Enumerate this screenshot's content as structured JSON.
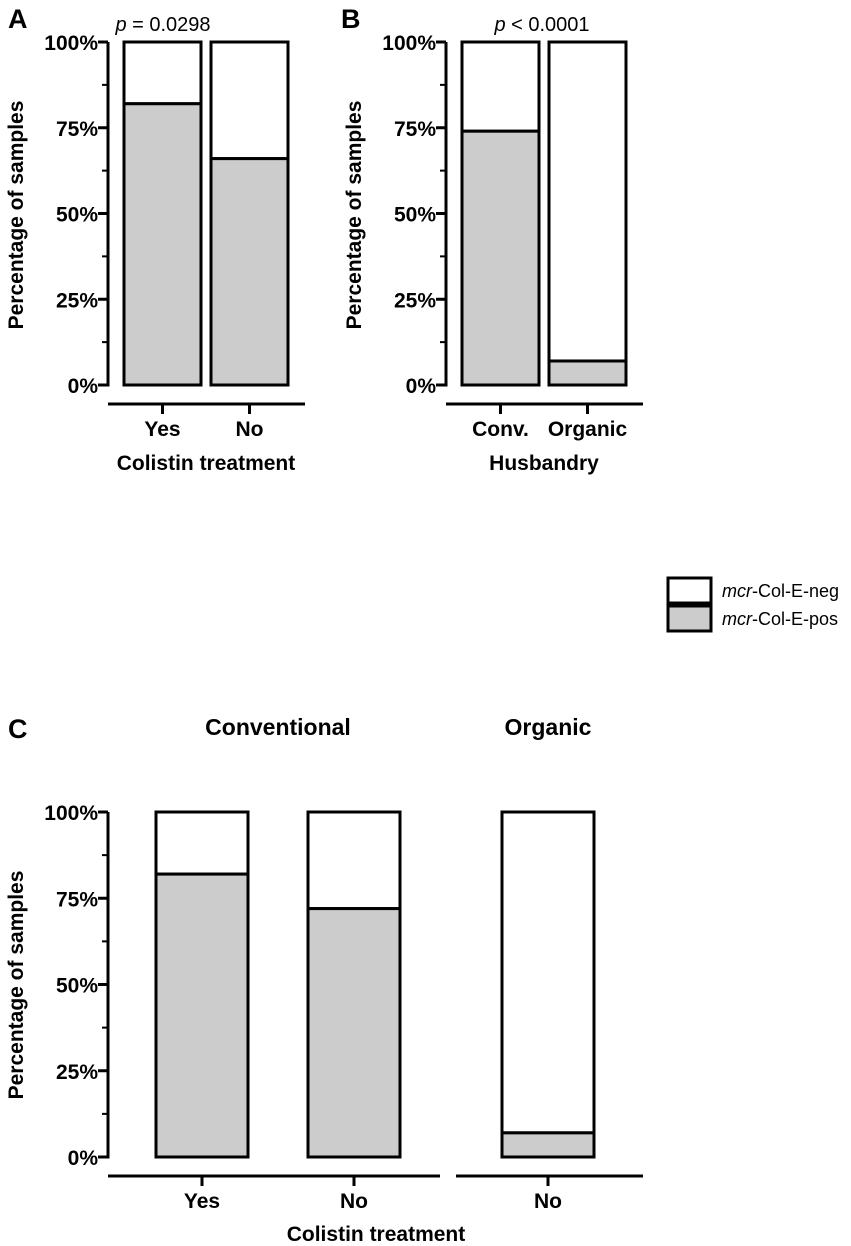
{
  "chart_data": [
    {
      "type": "bar",
      "stacked": true,
      "panel": "A",
      "annotation_p": "p",
      "annotation_rest": " = 0.0298",
      "ylabel": "Percentage of samples",
      "xlabel": "Colistin treatment",
      "ylim": [
        0,
        100
      ],
      "yticks": [
        "0%",
        "25%",
        "50%",
        "75%",
        "100%"
      ],
      "categories": [
        "Yes",
        "No"
      ],
      "series": [
        {
          "name": "mcr-Col-E-pos",
          "values": [
            82,
            66
          ]
        },
        {
          "name": "mcr-Col-E-neg",
          "values": [
            18,
            34
          ]
        }
      ]
    },
    {
      "type": "bar",
      "stacked": true,
      "panel": "B",
      "annotation_p": "p",
      "annotation_rest": " < 0.0001",
      "ylabel": "Percentage of samples",
      "xlabel": "Husbandry",
      "ylim": [
        0,
        100
      ],
      "yticks": [
        "0%",
        "25%",
        "50%",
        "75%",
        "100%"
      ],
      "categories": [
        "Conv.",
        "Organic"
      ],
      "series": [
        {
          "name": "mcr-Col-E-pos",
          "values": [
            74,
            7
          ]
        },
        {
          "name": "mcr-Col-E-neg",
          "values": [
            26,
            93
          ]
        }
      ]
    },
    {
      "type": "bar",
      "stacked": true,
      "panel": "C",
      "group_titles": [
        "Conventional",
        "Organic"
      ],
      "ylabel": "Percentage of samples",
      "xlabel": "Colistin treatment",
      "ylim": [
        0,
        100
      ],
      "yticks": [
        "0%",
        "25%",
        "50%",
        "75%",
        "100%"
      ],
      "categories": [
        "Yes",
        "No",
        "No"
      ],
      "groups": [
        "Conventional",
        "Conventional",
        "Organic"
      ],
      "series": [
        {
          "name": "mcr-Col-E-pos",
          "values": [
            82,
            72,
            7
          ]
        },
        {
          "name": "mcr-Col-E-neg",
          "values": [
            18,
            28,
            93
          ]
        }
      ]
    }
  ],
  "legend": [
    {
      "italic": "mcr",
      "rest": "-Col-E-neg",
      "color": "#ffffff"
    },
    {
      "italic": "mcr",
      "rest": "-Col-E-pos",
      "color": "#cccccc"
    }
  ]
}
